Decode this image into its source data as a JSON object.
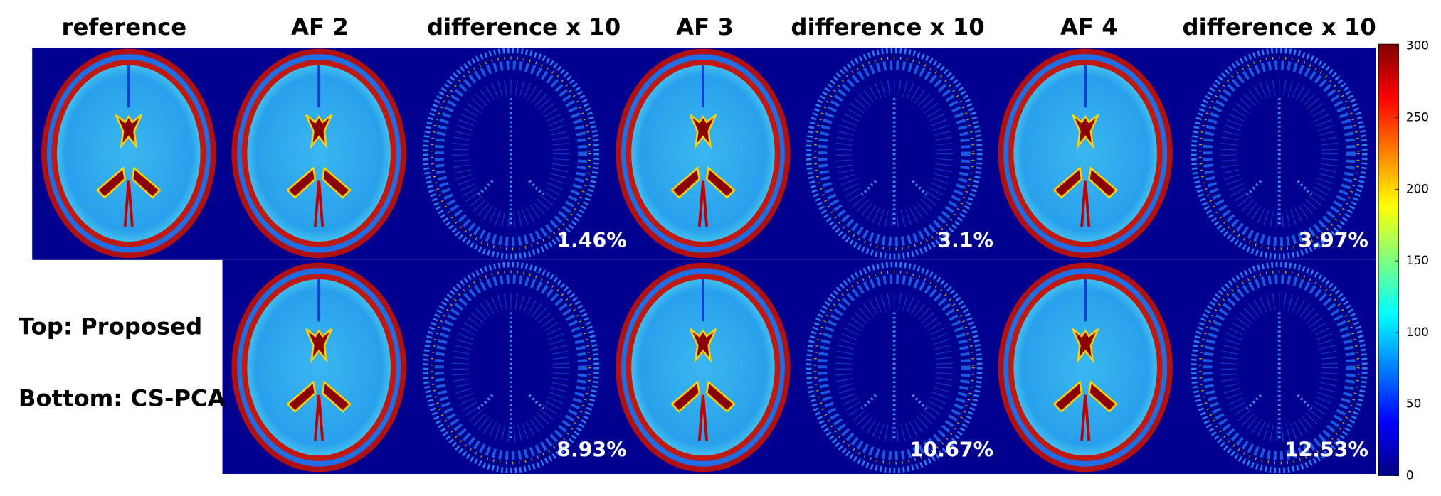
{
  "columns": [
    "reference",
    "AF 2",
    "difference x 10",
    "AF 3",
    "difference x 10",
    "AF 4",
    "difference x 10"
  ],
  "top_errors": [
    "1.46%",
    "3.1%",
    "3.97%"
  ],
  "bottom_errors": [
    "8.93%",
    "10.67%",
    "12.53%"
  ],
  "legend": {
    "top": "Top: Proposed",
    "bottom": "Bottom: CS-PCA"
  },
  "colorbar": {
    "lim": [
      0,
      300
    ],
    "ticks": [
      0,
      50,
      100,
      150,
      200,
      250,
      300
    ]
  }
}
